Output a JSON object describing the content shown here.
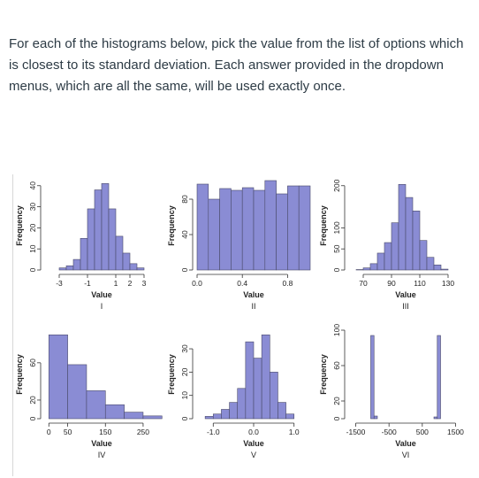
{
  "question_text": "For each of the histograms below, pick the value from the list of options which is closest to its standard deviation.  Each answer provided in the dropdown menus, which are all the same, will be used exactly once.",
  "colors": {
    "bar_fill": "#8a8cd4",
    "bar_stroke": "#4a4a6a",
    "axis": "#333333"
  },
  "chart_data": [
    {
      "type": "bar",
      "roman": "I",
      "xlabel": "Value",
      "ylabel": "Frequency",
      "xlim": [
        -4,
        4
      ],
      "ylim": [
        0,
        42
      ],
      "xticks": [
        -3,
        -1,
        1,
        2,
        3
      ],
      "xtick_labels": [
        "-3",
        "-1",
        "1",
        "2",
        "3"
      ],
      "yticks": [
        0,
        10,
        20,
        30,
        40
      ],
      "ytick_labels": [
        "0",
        "10",
        "20",
        "30",
        "40"
      ],
      "bins": [
        [
          -3.5,
          -3,
          0
        ],
        [
          -3,
          -2.5,
          1
        ],
        [
          -2.5,
          -2,
          2
        ],
        [
          -2,
          -1.5,
          5
        ],
        [
          -1.5,
          -1,
          15
        ],
        [
          -1,
          -0.5,
          29
        ],
        [
          -0.5,
          0,
          38
        ],
        [
          0,
          0.5,
          41
        ],
        [
          0.5,
          1,
          29
        ],
        [
          1,
          1.5,
          16
        ],
        [
          1.5,
          2,
          8
        ],
        [
          2,
          2.5,
          3
        ],
        [
          2.5,
          3,
          1
        ],
        [
          3,
          3.5,
          0
        ]
      ]
    },
    {
      "type": "bar",
      "roman": "II",
      "xlabel": "Value",
      "ylabel": "Frequency",
      "xlim": [
        0,
        1
      ],
      "ylim": [
        0,
        100
      ],
      "xticks": [
        0,
        0.4,
        0.8
      ],
      "xtick_labels": [
        "0.0",
        "0.4",
        "0.8"
      ],
      "yticks": [
        0,
        40,
        80
      ],
      "ytick_labels": [
        "0",
        "40",
        "80"
      ],
      "bins": [
        [
          0,
          0.1,
          97
        ],
        [
          0.1,
          0.2,
          80
        ],
        [
          0.2,
          0.3,
          92
        ],
        [
          0.3,
          0.4,
          90
        ],
        [
          0.4,
          0.5,
          93
        ],
        [
          0.5,
          0.6,
          90
        ],
        [
          0.6,
          0.7,
          101
        ],
        [
          0.7,
          0.8,
          86
        ],
        [
          0.8,
          0.9,
          95
        ],
        [
          0.9,
          1.0,
          95
        ]
      ]
    },
    {
      "type": "bar",
      "roman": "III",
      "xlabel": "Value",
      "ylabel": "Frequency",
      "xlim": [
        60,
        140
      ],
      "ylim": [
        0,
        210
      ],
      "xticks": [
        70,
        90,
        110,
        130
      ],
      "xtick_labels": [
        "70",
        "90",
        "110",
        "130"
      ],
      "yticks": [
        0,
        50,
        100,
        200
      ],
      "ytick_labels": [
        "0",
        "50",
        "100",
        "200"
      ],
      "bins": [
        [
          65,
          70,
          1
        ],
        [
          70,
          75,
          5
        ],
        [
          75,
          80,
          15
        ],
        [
          80,
          85,
          40
        ],
        [
          85,
          90,
          65
        ],
        [
          90,
          95,
          112
        ],
        [
          95,
          100,
          203
        ],
        [
          100,
          105,
          172
        ],
        [
          105,
          110,
          140
        ],
        [
          110,
          115,
          70
        ],
        [
          115,
          120,
          30
        ],
        [
          120,
          125,
          12
        ],
        [
          125,
          130,
          2
        ],
        [
          130,
          135,
          0
        ]
      ]
    },
    {
      "type": "bar",
      "roman": "IV",
      "xlabel": "Value",
      "ylabel": "Frequency",
      "xlim": [
        -10,
        290
      ],
      "ylim": [
        0,
        95
      ],
      "xticks": [
        0,
        50,
        150,
        250
      ],
      "xtick_labels": [
        "0",
        "50",
        "150",
        "250"
      ],
      "yticks": [
        0,
        20,
        60
      ],
      "ytick_labels": [
        "0",
        "20",
        "60"
      ],
      "bins": [
        [
          0,
          50,
          90
        ],
        [
          50,
          100,
          58
        ],
        [
          100,
          150,
          30
        ],
        [
          150,
          200,
          15
        ],
        [
          200,
          250,
          7
        ],
        [
          250,
          300,
          3
        ]
      ]
    },
    {
      "type": "bar",
      "roman": "V",
      "xlabel": "Value",
      "ylabel": "Frequency",
      "xlim": [
        -1.4,
        1.4
      ],
      "ylim": [
        0,
        38
      ],
      "xticks": [
        -1.0,
        0.0,
        1.0
      ],
      "xtick_labels": [
        "-1.0",
        "0.0",
        "1.0"
      ],
      "yticks": [
        0,
        10,
        20,
        30
      ],
      "ytick_labels": [
        "0",
        "10",
        "20",
        "30"
      ],
      "bins": [
        [
          -1.2,
          -1.0,
          1
        ],
        [
          -1.0,
          -0.8,
          2
        ],
        [
          -0.8,
          -0.6,
          4
        ],
        [
          -0.6,
          -0.4,
          7
        ],
        [
          -0.4,
          -0.2,
          13
        ],
        [
          -0.2,
          0,
          33
        ],
        [
          0,
          0.2,
          26
        ],
        [
          0.2,
          0.4,
          36
        ],
        [
          0.4,
          0.6,
          20
        ],
        [
          0.6,
          0.8,
          7
        ],
        [
          0.8,
          1.0,
          2
        ]
      ]
    },
    {
      "type": "bar",
      "roman": "VI",
      "xlabel": "Value",
      "ylabel": "Frequency",
      "xlim": [
        -1700,
        1700
      ],
      "ylim": [
        0,
        100
      ],
      "xticks": [
        -1500,
        -500,
        500,
        1500
      ],
      "xtick_labels": [
        "-1500",
        "-500",
        "500",
        "1500"
      ],
      "yticks": [
        0,
        20,
        60,
        100
      ],
      "ytick_labels": [
        "0",
        "20",
        "60",
        "100"
      ],
      "bins": [
        [
          -1050,
          -950,
          94
        ],
        [
          -950,
          -850,
          3
        ],
        [
          850,
          950,
          2
        ],
        [
          950,
          1050,
          94
        ]
      ]
    }
  ]
}
